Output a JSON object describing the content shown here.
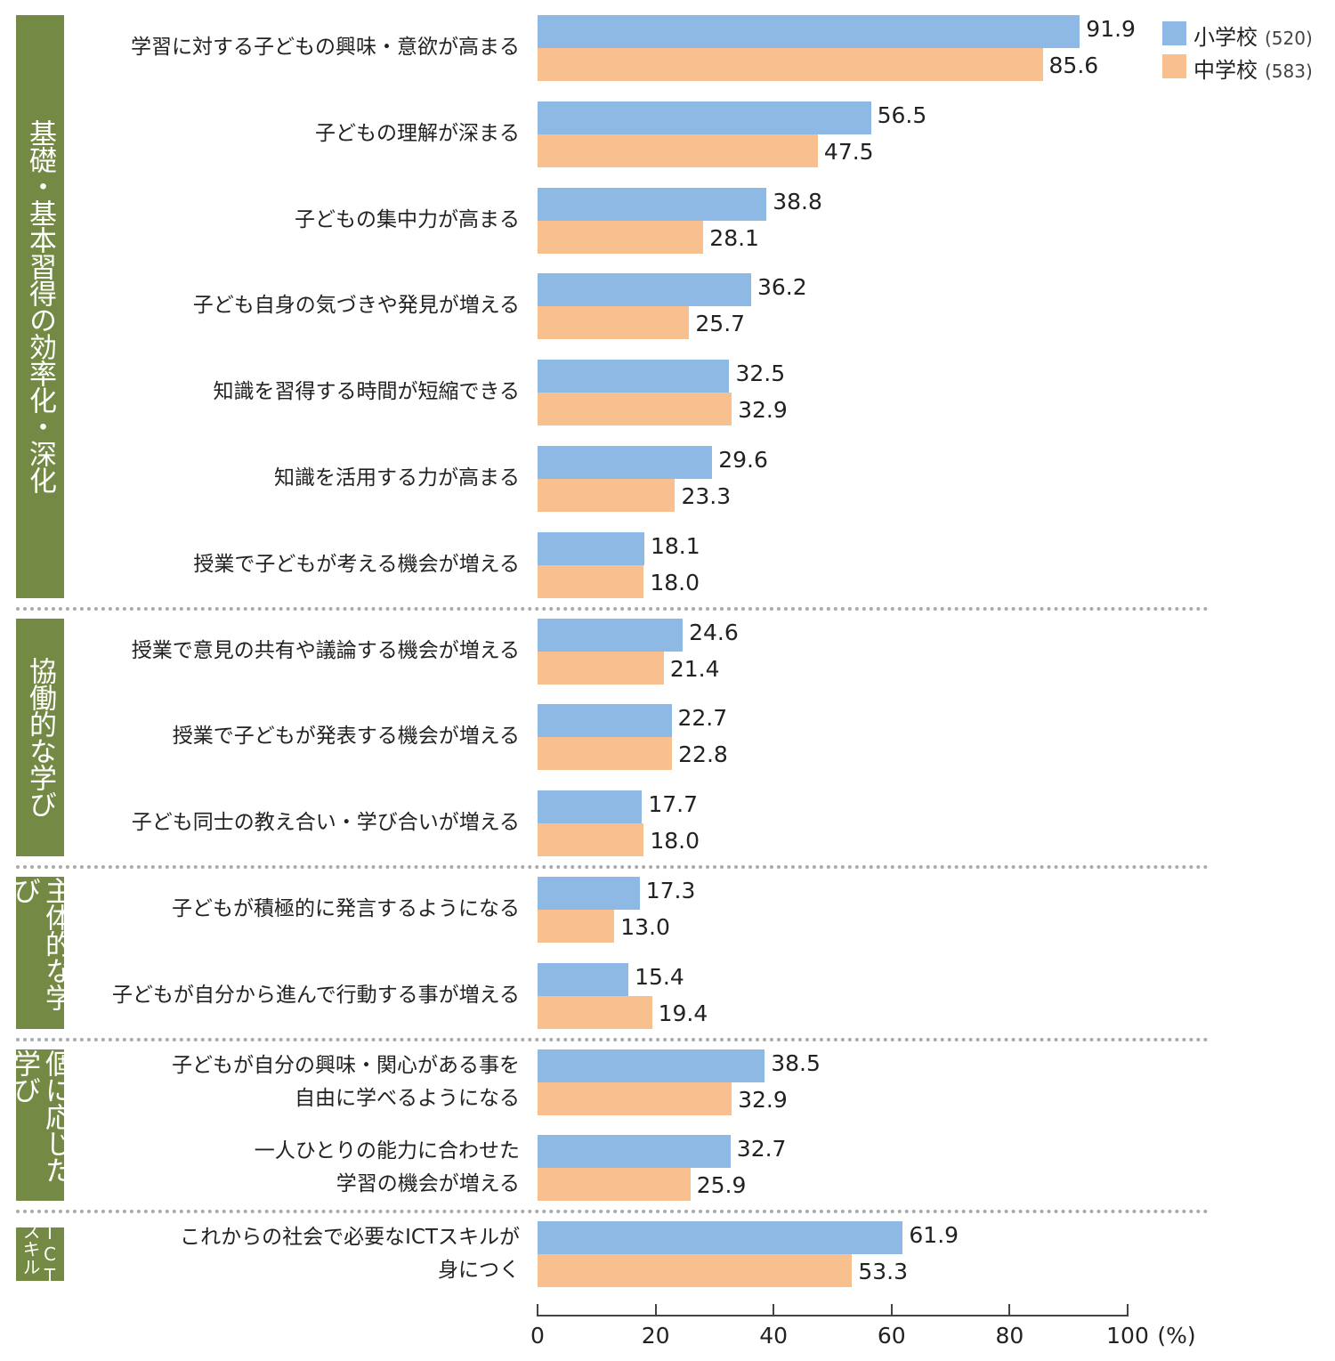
{
  "chart_data": {
    "type": "bar",
    "orientation": "horizontal",
    "xlabel": "(%)",
    "xlim": [
      0,
      100
    ],
    "xticks": [
      "0",
      "20",
      "40",
      "60",
      "80",
      "100"
    ],
    "legend": {
      "position": "top-right",
      "entries": [
        {
          "name": "小学校",
          "n": "(520)",
          "color": "#8db9e4"
        },
        {
          "name": "中学校",
          "n": "(583)",
          "color": "#f7c08e"
        }
      ]
    },
    "groups": [
      {
        "label": "基礎・基本習得の効率化・深化",
        "categories": [
          {
            "label": [
              "学習に対する子どもの興味・意欲が高まる"
            ],
            "values": [
              91.9,
              85.6
            ]
          },
          {
            "label": [
              "子どもの理解が深まる"
            ],
            "values": [
              56.5,
              47.5
            ]
          },
          {
            "label": [
              "子どもの集中力が高まる"
            ],
            "values": [
              38.8,
              28.1
            ]
          },
          {
            "label": [
              "子ども自身の気づきや発見が増える"
            ],
            "values": [
              36.2,
              25.7
            ]
          },
          {
            "label": [
              "知識を習得する時間が短縮できる"
            ],
            "values": [
              32.5,
              32.9
            ]
          },
          {
            "label": [
              "知識を活用する力が高まる"
            ],
            "values": [
              29.6,
              23.3
            ]
          },
          {
            "label": [
              "授業で子どもが考える機会が増える"
            ],
            "values": [
              18.1,
              18.0
            ]
          }
        ]
      },
      {
        "label": "協働的な学び",
        "categories": [
          {
            "label": [
              "授業で意見の共有や議論する機会が増える"
            ],
            "values": [
              24.6,
              21.4
            ]
          },
          {
            "label": [
              "授業で子どもが発表する機会が増える"
            ],
            "values": [
              22.7,
              22.8
            ]
          },
          {
            "label": [
              "子ども同士の教え合い・学び合いが増える"
            ],
            "values": [
              17.7,
              18.0
            ]
          }
        ]
      },
      {
        "label": "主体的な学び",
        "categories": [
          {
            "label": [
              "子どもが積極的に発言するようになる"
            ],
            "values": [
              17.3,
              13.0
            ]
          },
          {
            "label": [
              "子どもが自分から進んで行動する事が増える"
            ],
            "values": [
              15.4,
              19.4
            ]
          }
        ]
      },
      {
        "label": "個に応じた学び",
        "categories": [
          {
            "label": [
              "子どもが自分の興味・関心がある事を",
              "自由に学べるようになる"
            ],
            "values": [
              38.5,
              32.9
            ]
          },
          {
            "label": [
              "一人ひとりの能力に合わせた",
              "学習の機会が増える"
            ],
            "values": [
              32.7,
              25.9
            ]
          }
        ]
      },
      {
        "label": "ICTスキル",
        "categories": [
          {
            "label": [
              "これからの社会で必要なICTスキルが",
              "身につく"
            ],
            "values": [
              61.9,
              53.3
            ]
          }
        ]
      }
    ]
  }
}
